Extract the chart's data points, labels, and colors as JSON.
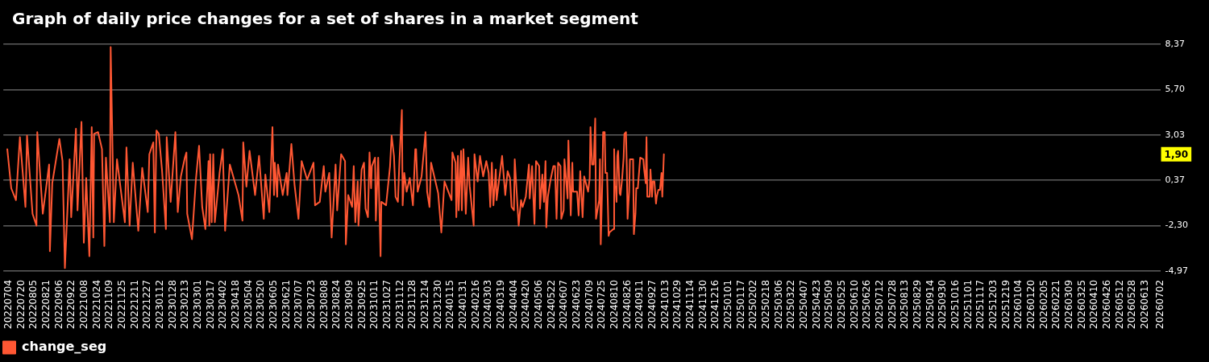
{
  "chart_data": {
    "type": "line",
    "title": "Graph of daily price changes for a set of shares in a market segment",
    "x": [
      "2022-07-02",
      "2022-07-07",
      "2022-07-13",
      "2022-07-18",
      "2022-07-25",
      "2022-07-27",
      "2022-08-03",
      "2022-08-08",
      "2022-08-09",
      "2022-08-16",
      "2022-08-24",
      "2022-08-25",
      "2022-08-28",
      "2022-09-06",
      "2022-09-10",
      "2022-09-13",
      "2022-09-19",
      "2022-09-21",
      "2022-09-27",
      "2022-09-29",
      "2022-10-04",
      "2022-10-07",
      "2022-10-10",
      "2022-10-14",
      "2022-10-17",
      "2022-10-19",
      "2022-10-20",
      "2022-10-25",
      "2022-10-30",
      "2022-11-02",
      "2022-11-04",
      "2022-11-09",
      "2022-11-10",
      "2022-11-14",
      "2022-11-18",
      "2022-11-28",
      "2022-11-30",
      "2022-12-04",
      "2022-12-08",
      "2022-12-15",
      "2022-12-20",
      "2022-12-27",
      "2022-12-29",
      "2023-01-03",
      "2023-01-05",
      "2023-01-07",
      "2023-01-10",
      "2023-01-14",
      "2023-01-19",
      "2023-01-20",
      "2023-01-25",
      "2023-01-31",
      "2023-02-03",
      "2023-02-07",
      "2023-02-12",
      "2023-02-14",
      "2023-02-15",
      "2023-02-21",
      "2023-02-26",
      "2023-03-02",
      "2023-03-06",
      "2023-03-10",
      "2023-03-14",
      "2023-03-15",
      "2023-03-16",
      "2023-03-18",
      "2023-03-20",
      "2023-03-22",
      "2023-03-28",
      "2023-04-01",
      "2023-04-04",
      "2023-04-10",
      "2023-04-21",
      "2023-04-26",
      "2023-04-27",
      "2023-05-01",
      "2023-05-05",
      "2023-05-12",
      "2023-05-17",
      "2023-05-23",
      "2023-05-25",
      "2023-05-30",
      "2023-06-03",
      "2023-06-05",
      "2023-06-06",
      "2023-06-09",
      "2023-06-10",
      "2023-06-16",
      "2023-06-21",
      "2023-06-22",
      "2023-06-27",
      "2023-07-01",
      "2023-07-06",
      "2023-07-10",
      "2023-07-17",
      "2023-07-25",
      "2023-07-27",
      "2023-08-02",
      "2023-08-07",
      "2023-08-09",
      "2023-08-14",
      "2023-08-17",
      "2023-08-22",
      "2023-08-24",
      "2023-08-29",
      "2023-09-03",
      "2023-09-04",
      "2023-09-07",
      "2023-09-12",
      "2023-09-14",
      "2023-09-16",
      "2023-09-19",
      "2023-09-20",
      "2023-09-24",
      "2023-09-27",
      "2023-09-29",
      "2023-10-02",
      "2023-10-04",
      "2023-10-06",
      "2023-10-07",
      "2023-10-11",
      "2023-10-12",
      "2023-10-15",
      "2023-10-18",
      "2023-10-19",
      "2023-10-25",
      "2023-10-30",
      "2023-11-01",
      "2023-11-04",
      "2023-11-06",
      "2023-11-09",
      "2023-11-11",
      "2023-11-14",
      "2023-11-15",
      "2023-11-17",
      "2023-11-20",
      "2023-11-24",
      "2023-11-28",
      "2023-12-01",
      "2023-12-02",
      "2023-12-04",
      "2023-12-09",
      "2023-12-14",
      "2023-12-16",
      "2023-12-19",
      "2023-12-21",
      "2023-12-24",
      "2023-12-30",
      "2024-01-03",
      "2024-01-07",
      "2024-01-16",
      "2024-01-17",
      "2024-01-21",
      "2024-01-22",
      "2024-01-24",
      "2024-01-25",
      "2024-01-28",
      "2024-01-29",
      "2024-01-31",
      "2024-02-03",
      "2024-02-06",
      "2024-02-08",
      "2024-02-13",
      "2024-02-14",
      "2024-02-18",
      "2024-02-21",
      "2024-02-25",
      "2024-02-29",
      "2024-03-03",
      "2024-03-05",
      "2024-03-07",
      "2024-03-09",
      "2024-03-12",
      "2024-03-13",
      "2024-03-20",
      "2024-03-24",
      "2024-03-27",
      "2024-03-30",
      "2024-04-01",
      "2024-04-04",
      "2024-04-05",
      "2024-04-10",
      "2024-04-13",
      "2024-04-15",
      "2024-04-19",
      "2024-04-23",
      "2024-04-24",
      "2024-04-27",
      "2024-04-30",
      "2024-05-02",
      "2024-05-06",
      "2024-05-07",
      "2024-05-10",
      "2024-05-12",
      "2024-05-14",
      "2024-05-15",
      "2024-05-17",
      "2024-05-20",
      "2024-05-24",
      "2024-05-26",
      "2024-05-28",
      "2024-05-30",
      "2024-06-02",
      "2024-06-03",
      "2024-06-06",
      "2024-06-07",
      "2024-06-11",
      "2024-06-12",
      "2024-06-15",
      "2024-06-17",
      "2024-06-18",
      "2024-06-23",
      "2024-06-25",
      "2024-06-27",
      "2024-06-30",
      "2024-07-02",
      "2024-07-07",
      "2024-07-09",
      "2024-07-10",
      "2024-07-12",
      "2024-07-14",
      "2024-07-16",
      "2024-07-17",
      "2024-07-21",
      "2024-07-22",
      "2024-07-23",
      "2024-07-25",
      "2024-07-26",
      "2024-07-28",
      "2024-07-29",
      "2024-07-31",
      "2024-08-02",
      "2024-08-03",
      "2024-08-08",
      "2024-08-09",
      "2024-08-10",
      "2024-08-11",
      "2024-08-12",
      "2024-08-13",
      "2024-08-14",
      "2024-08-16",
      "2024-08-17",
      "2024-08-19",
      "2024-08-21",
      "2024-08-22",
      "2024-08-24",
      "2024-08-25",
      "2024-08-26",
      "2024-08-28",
      "2024-08-29",
      "2024-09-02",
      "2024-09-03",
      "2024-09-05",
      "2024-09-06",
      "2024-09-08",
      "2024-09-10",
      "2024-09-11",
      "2024-09-15",
      "2024-09-16",
      "2024-09-18",
      "2024-09-19",
      "2024-09-20",
      "2024-09-23",
      "2024-09-24",
      "2024-09-26",
      "2024-09-27",
      "2024-09-29",
      "2024-10-01",
      "2024-10-02",
      "2024-10-04",
      "2024-10-06",
      "2024-10-08",
      "2024-10-09",
      "2024-10-11"
    ],
    "series": [
      {
        "name": "change_seg",
        "color": "#ff5733",
        "values": [
          2.2,
          -0.1,
          -0.8,
          2.9,
          -1.2,
          3.0,
          -1.6,
          -2.3,
          3.2,
          -1.6,
          1.3,
          -3.8,
          0.2,
          2.8,
          1.5,
          -4.8,
          1.6,
          -1.8,
          3.4,
          -1.4,
          3.8,
          -3.3,
          0.5,
          -4.1,
          3.5,
          -3.0,
          3.1,
          3.2,
          2.2,
          -3.5,
          1.7,
          -2.1,
          8.2,
          -2.1,
          1.6,
          -2.1,
          2.3,
          -2.3,
          1.4,
          -2.6,
          1.1,
          -1.5,
          1.9,
          2.6,
          -2.7,
          3.3,
          3.1,
          1.0,
          -2.5,
          2.9,
          -0.9,
          3.2,
          -1.5,
          0.6,
          1.7,
          2.0,
          -1.6,
          -3.1,
          0.4,
          2.4,
          -1.2,
          -2.5,
          1.5,
          -2.3,
          1.9,
          -2.1,
          1.9,
          -2.1,
          0.8,
          2.2,
          -2.6,
          1.3,
          -0.5,
          -2.0,
          2.6,
          0.0,
          2.1,
          -0.5,
          1.8,
          -1.9,
          0.7,
          -1.5,
          3.5,
          -0.5,
          1.4,
          -0.6,
          1.3,
          -0.5,
          0.8,
          -0.5,
          2.5,
          0.1,
          -1.9,
          1.5,
          0.4,
          1.4,
          -1.1,
          -0.9,
          1.2,
          -0.3,
          0.8,
          -3.0,
          1.3,
          -1.4,
          1.9,
          1.5,
          -3.4,
          -0.5,
          -1.2,
          1.2,
          -2.1,
          0.3,
          -2.3,
          1.0,
          1.4,
          -1.3,
          -1.8,
          2.0,
          -0.1,
          1.2,
          1.7,
          -2.0,
          1.7,
          -4.1,
          -0.9,
          -1.1,
          1.2,
          3.0,
          1.8,
          -0.6,
          -0.9,
          1.6,
          4.5,
          -1.1,
          0.8,
          -0.3,
          0.5,
          -1.1,
          2.2,
          2.2,
          -0.3,
          0.6,
          3.2,
          -0.3,
          -1.2,
          1.4,
          0.8,
          -0.4,
          -2.7,
          0.3,
          -0.8,
          2.0,
          1.4,
          -1.8,
          1.8,
          -1.4,
          2.1,
          -1.4,
          2.2,
          -1.6,
          1.7,
          0.0,
          -2.3,
          1.9,
          0.3,
          1.8,
          0.6,
          1.5,
          0.8,
          -1.2,
          1.4,
          -1.1,
          1.0,
          -0.8,
          1.8,
          -0.5,
          0.9,
          0.5,
          -1.2,
          -1.4,
          1.6,
          -2.3,
          -0.8,
          -1.2,
          -0.6,
          1.3,
          -0.7,
          1.2,
          -2.2,
          1.5,
          1.2,
          -1.3,
          0.7,
          -0.9,
          1.5,
          -2.4,
          -0.6,
          0.3,
          1.2,
          1.2,
          -1.9,
          1.4,
          1.2,
          -1.9,
          -1.4,
          1.6,
          -0.7,
          2.7,
          -1.7,
          1.4,
          -0.3,
          -0.3,
          -1.7,
          0.9,
          -1.8,
          0.6,
          -0.3,
          0.5,
          3.5,
          1.3,
          1.3,
          4.0,
          -1.9,
          -0.8,
          1.6,
          -3.4,
          0.3,
          3.2,
          3.2,
          0.8,
          0.8,
          -2.9,
          -2.7,
          -2.5,
          2.2,
          0.0,
          0.0,
          -0.9,
          1.8,
          2.1,
          -0.4,
          -0.5,
          0.4,
          1.7,
          3.1,
          3.2,
          1.2,
          -1.9,
          -0.3,
          1.6,
          1.6,
          -2.8,
          -1.6,
          -0.1,
          -0.1,
          1.1,
          1.7,
          1.6,
          1.0,
          0.2,
          2.9,
          -0.6,
          -0.6,
          1.0,
          -0.6,
          0.3,
          0.3,
          -1.0,
          -0.6,
          -0.2,
          -0.2,
          0.8,
          -0.6,
          1.9
        ]
      }
    ],
    "xlim": [
      "2022-06-27",
      "2026-07-02"
    ],
    "xticks": [
      {
        "value": "2022-07-04",
        "label": "20220704"
      },
      {
        "value": "2022-07-20",
        "label": "20220720"
      },
      {
        "value": "2022-08-05",
        "label": "20220805"
      },
      {
        "value": "2022-08-21",
        "label": "20220821"
      },
      {
        "value": "2022-09-06",
        "label": "20220906"
      },
      {
        "value": "2022-09-22",
        "label": "20220922"
      },
      {
        "value": "2022-10-08",
        "label": "20221008"
      },
      {
        "value": "2022-10-24",
        "label": "20221024"
      },
      {
        "value": "2022-11-09",
        "label": "20221109"
      },
      {
        "value": "2022-11-25",
        "label": "20221125"
      },
      {
        "value": "2022-12-11",
        "label": "20221211"
      },
      {
        "value": "2022-12-27",
        "label": "20221227"
      },
      {
        "value": "2023-01-12",
        "label": "20230112"
      },
      {
        "value": "2023-01-28",
        "label": "20230128"
      },
      {
        "value": "2023-02-13",
        "label": "20230213"
      },
      {
        "value": "2023-03-01",
        "label": "20230301"
      },
      {
        "value": "2023-03-17",
        "label": "20230317"
      },
      {
        "value": "2023-04-02",
        "label": "20230402"
      },
      {
        "value": "2023-04-18",
        "label": "20230418"
      },
      {
        "value": "2023-05-04",
        "label": "20230504"
      },
      {
        "value": "2023-05-20",
        "label": "20230520"
      },
      {
        "value": "2023-06-05",
        "label": "20230605"
      },
      {
        "value": "2023-06-21",
        "label": "20230621"
      },
      {
        "value": "2023-07-07",
        "label": "20230707"
      },
      {
        "value": "2023-07-23",
        "label": "20230723"
      },
      {
        "value": "2023-08-08",
        "label": "20230808"
      },
      {
        "value": "2023-08-24",
        "label": "20230824"
      },
      {
        "value": "2023-09-09",
        "label": "20230909"
      },
      {
        "value": "2023-09-25",
        "label": "20230925"
      },
      {
        "value": "2023-10-11",
        "label": "20231011"
      },
      {
        "value": "2023-10-27",
        "label": "20231027"
      },
      {
        "value": "2023-11-12",
        "label": "20231112"
      },
      {
        "value": "2023-11-28",
        "label": "20231128"
      },
      {
        "value": "2023-12-14",
        "label": "20231214"
      },
      {
        "value": "2023-12-30",
        "label": "20231230"
      },
      {
        "value": "2024-01-15",
        "label": "20240115"
      },
      {
        "value": "2024-01-31",
        "label": "20240131"
      },
      {
        "value": "2024-02-16",
        "label": "20240216"
      },
      {
        "value": "2024-03-03",
        "label": "20240303"
      },
      {
        "value": "2024-03-19",
        "label": "20240319"
      },
      {
        "value": "2024-04-04",
        "label": "20240404"
      },
      {
        "value": "2024-04-20",
        "label": "20240420"
      },
      {
        "value": "2024-05-06",
        "label": "20240506"
      },
      {
        "value": "2024-05-22",
        "label": "20240522"
      },
      {
        "value": "2024-06-07",
        "label": "20240607"
      },
      {
        "value": "2024-06-23",
        "label": "20240623"
      },
      {
        "value": "2024-07-09",
        "label": "20240709"
      },
      {
        "value": "2024-07-25",
        "label": "20240725"
      },
      {
        "value": "2024-08-10",
        "label": "20240810"
      },
      {
        "value": "2024-08-26",
        "label": "20240826"
      },
      {
        "value": "2024-09-11",
        "label": "20240911"
      },
      {
        "value": "2024-09-27",
        "label": "20240927"
      },
      {
        "value": "2024-10-13",
        "label": "20241013"
      },
      {
        "value": "2024-10-29",
        "label": "20241029"
      },
      {
        "value": "2024-11-14",
        "label": "20241114"
      },
      {
        "value": "2024-11-30",
        "label": "20241130"
      },
      {
        "value": "2024-12-16",
        "label": "20241216"
      },
      {
        "value": "2025-01-01",
        "label": "20250101"
      },
      {
        "value": "2025-01-17",
        "label": "20250117"
      },
      {
        "value": "2025-02-02",
        "label": "20250202"
      },
      {
        "value": "2025-02-18",
        "label": "20250218"
      },
      {
        "value": "2025-03-06",
        "label": "20250306"
      },
      {
        "value": "2025-03-22",
        "label": "20250322"
      },
      {
        "value": "2025-04-07",
        "label": "20250407"
      },
      {
        "value": "2025-04-23",
        "label": "20250423"
      },
      {
        "value": "2025-05-09",
        "label": "20250509"
      },
      {
        "value": "2025-05-25",
        "label": "20250525"
      },
      {
        "value": "2025-06-10",
        "label": "20250610"
      },
      {
        "value": "2025-06-26",
        "label": "20250626"
      },
      {
        "value": "2025-07-12",
        "label": "20250712"
      },
      {
        "value": "2025-07-28",
        "label": "20250728"
      },
      {
        "value": "2025-08-13",
        "label": "20250813"
      },
      {
        "value": "2025-08-29",
        "label": "20250829"
      },
      {
        "value": "2025-09-14",
        "label": "20250914"
      },
      {
        "value": "2025-09-30",
        "label": "20250930"
      },
      {
        "value": "2025-10-16",
        "label": "20251016"
      },
      {
        "value": "2025-11-01",
        "label": "20251101"
      },
      {
        "value": "2025-11-17",
        "label": "20251117"
      },
      {
        "value": "2025-12-03",
        "label": "20251203"
      },
      {
        "value": "2025-12-19",
        "label": "20251219"
      },
      {
        "value": "2026-01-04",
        "label": "20260104"
      },
      {
        "value": "2026-01-20",
        "label": "20260120"
      },
      {
        "value": "2026-02-05",
        "label": "20260205"
      },
      {
        "value": "2026-02-21",
        "label": "20260221"
      },
      {
        "value": "2026-03-09",
        "label": "20260309"
      },
      {
        "value": "2026-03-25",
        "label": "20260325"
      },
      {
        "value": "2026-04-10",
        "label": "20260410"
      },
      {
        "value": "2026-04-26",
        "label": "20260426"
      },
      {
        "value": "2026-05-12",
        "label": "20260512"
      },
      {
        "value": "2026-05-28",
        "label": "20260528"
      },
      {
        "value": "2026-06-13",
        "label": "20260613"
      },
      {
        "value": "2026-07-02",
        "label": "20260702"
      }
    ],
    "ylim": [
      -4.97,
      8.37
    ],
    "yticks": [
      {
        "value": -4.97,
        "label": "-4,97"
      },
      {
        "value": -2.3,
        "label": "-2,30"
      },
      {
        "value": 0.37,
        "label": "0,37"
      },
      {
        "value": 3.03,
        "label": "3,03"
      },
      {
        "value": 5.7,
        "label": "5,70"
      },
      {
        "value": 8.37,
        "label": "8,37"
      }
    ],
    "grid": "y",
    "legend": "bottom left",
    "line_style": "solid",
    "annotations": [
      {
        "text": "1,90",
        "y": 1.9
      }
    ]
  }
}
